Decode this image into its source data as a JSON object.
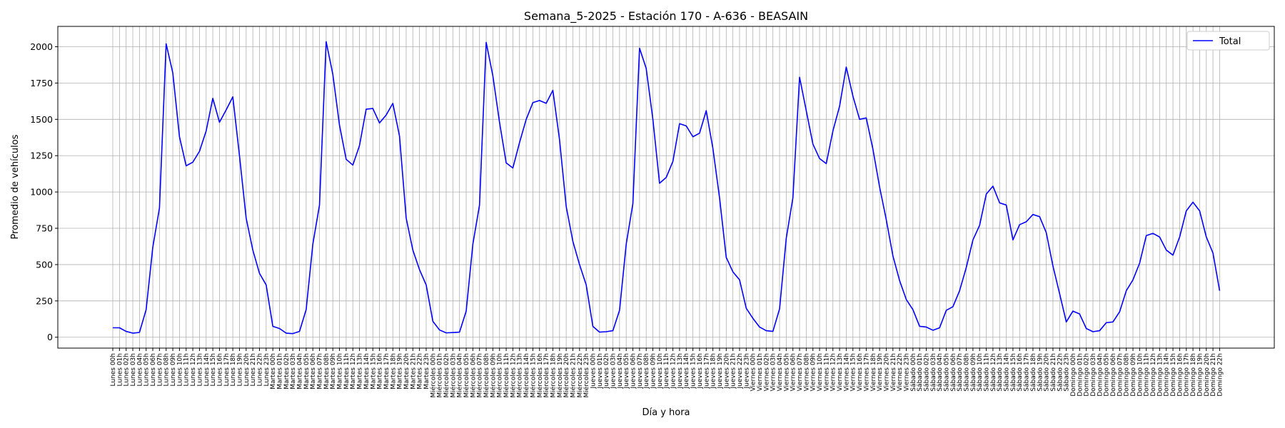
{
  "chart_data": {
    "type": "line",
    "title": "Semana_5-2025 - Estación 170 - A-636  - BEASAIN",
    "xlabel": "Día y hora",
    "ylabel": "Promedio de vehículos",
    "ylim": [
      -75,
      2140
    ],
    "yticks": [
      0,
      250,
      500,
      750,
      1000,
      1250,
      1500,
      1750,
      2000
    ],
    "grid": true,
    "legend": "top-right",
    "days": [
      "Lunes",
      "Martes",
      "Miércoles",
      "Jueves",
      "Viernes",
      "Sábado",
      "Domingo"
    ],
    "series": [
      {
        "name": "Total",
        "color": "#0000ff",
        "values": [
          65,
          65,
          40,
          28,
          33,
          190,
          620,
          890,
          2020,
          1820,
          1380,
          1180,
          1205,
          1280,
          1420,
          1645,
          1480,
          1565,
          1655,
          1250,
          820,
          600,
          440,
          360,
          75,
          60,
          28,
          25,
          40,
          190,
          640,
          910,
          2035,
          1810,
          1460,
          1225,
          1185,
          1320,
          1570,
          1575,
          1475,
          1530,
          1610,
          1385,
          820,
          600,
          465,
          360,
          110,
          50,
          30,
          32,
          35,
          180,
          640,
          910,
          2030,
          1800,
          1480,
          1200,
          1165,
          1340,
          1500,
          1615,
          1630,
          1610,
          1700,
          1360,
          900,
          660,
          500,
          360,
          75,
          35,
          38,
          45,
          185,
          640,
          920,
          1990,
          1850,
          1500,
          1060,
          1100,
          1210,
          1470,
          1455,
          1380,
          1405,
          1560,
          1300,
          960,
          550,
          450,
          395,
          200,
          130,
          70,
          45,
          40,
          195,
          680,
          960,
          1790,
          1560,
          1330,
          1230,
          1195,
          1420,
          1590,
          1860,
          1660,
          1500,
          1510,
          1295,
          1035,
          810,
          560,
          390,
          260,
          190,
          75,
          70,
          48,
          65,
          185,
          210,
          320,
          480,
          670,
          770,
          985,
          1040,
          925,
          910,
          670,
          775,
          795,
          845,
          830,
          720,
          490,
          300,
          105,
          180,
          160,
          60,
          38,
          45,
          100,
          105,
          175,
          320,
          395,
          510,
          700,
          715,
          690,
          600,
          565,
          690,
          870,
          930,
          870,
          690,
          580,
          320
        ]
      }
    ]
  }
}
